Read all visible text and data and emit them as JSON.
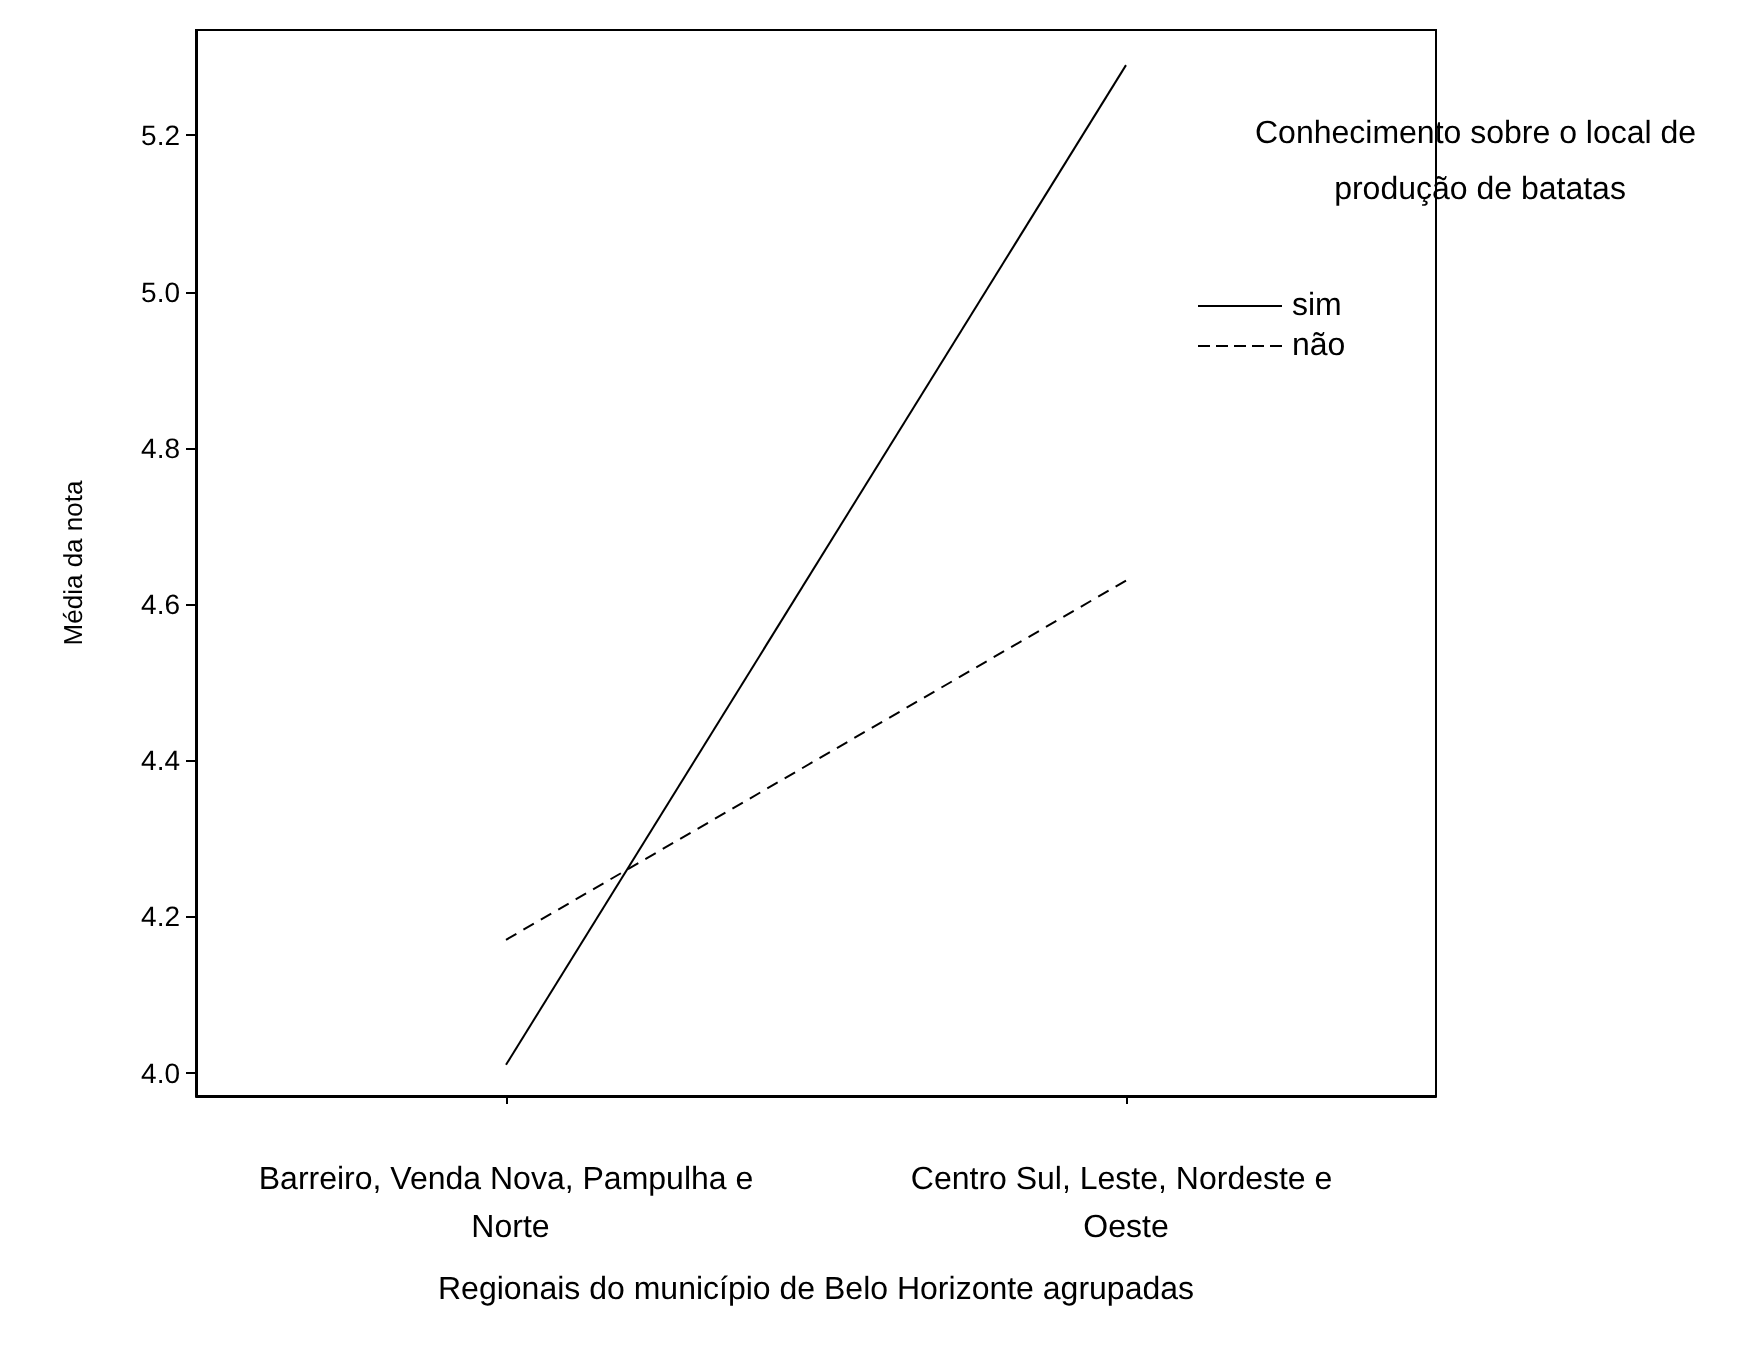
{
  "chart_data": {
    "type": "line",
    "xlabel": "Regionais do município de Belo Horizonte agrupadas",
    "ylabel": "Média da nota",
    "legend_title": "Conhecimento sobre o local de produção de batatas",
    "categories": [
      "Barreiro, Venda Nova, Pampulha e Norte",
      "Centro Sul, Leste, Nordeste e Oeste"
    ],
    "series": [
      {
        "name": "sim",
        "color": "#000000",
        "line_style": "solid",
        "values": [
          4.01,
          5.29
        ]
      },
      {
        "name": "não",
        "color": "#000000",
        "line_style": "dashed",
        "values": [
          4.17,
          4.63
        ]
      }
    ],
    "ylim": [
      3.97,
      5.335
    ],
    "yticks": [
      {
        "value": 4.0,
        "label": "4.0"
      },
      {
        "value": 4.2,
        "label": "4.2"
      },
      {
        "value": 4.4,
        "label": "4.4"
      },
      {
        "value": 4.6,
        "label": "4.6"
      },
      {
        "value": 4.8,
        "label": "4.8"
      },
      {
        "value": 5.0,
        "label": "5.0"
      },
      {
        "value": 5.2,
        "label": "5.2"
      }
    ],
    "grid": false,
    "legend": "top right",
    "marker": "none"
  }
}
